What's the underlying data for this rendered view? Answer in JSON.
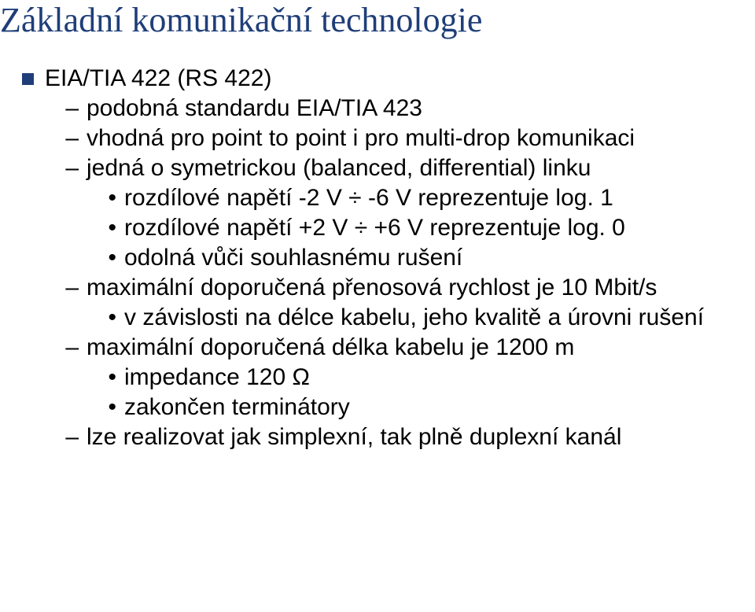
{
  "title": "Základní komunikační technologie",
  "title_color": "#1f3e79",
  "title_fontsize": 44,
  "body_color": "#000000",
  "body_fontsize": 30,
  "line_height": 38,
  "bullet_square_color": "#1f3e79",
  "bullet_square_size": 15,
  "lvl1": {
    "text": "EIA/TIA 422 (RS 422)",
    "indent": 28
  },
  "lvl2": [
    {
      "text": "podobná standardu EIA/TIA 423"
    },
    {
      "text": "vhodná pro point to point i pro multi-drop komunikaci"
    },
    {
      "text": "jedná o symetrickou (balanced, differential) linku"
    },
    {
      "text": "maximální doporučená přenosová rychlost je 10 Mbit/s"
    },
    {
      "text": "maximální doporučená délka kabelu je 1200 m"
    },
    {
      "text": "lze realizovat jak simplexní, tak plně duplexní kanál"
    }
  ],
  "lvl2_indent": 78,
  "lvl3_groupA": [
    {
      "text": "rozdílové napětí -2 V ÷ -6 V reprezentuje log. 1"
    },
    {
      "text": "rozdílové napětí +2 V ÷ +6 V reprezentuje log. 0"
    },
    {
      "text": "odolná vůči souhlasnému rušení"
    }
  ],
  "lvl3_groupB": [
    {
      "text": "v závislosti na délce kabelu, jeho kvalitě a úrovni rušení"
    }
  ],
  "lvl3_groupC": [
    {
      "text": "impedance 120 Ω"
    },
    {
      "text": "zakončen terminátory"
    }
  ],
  "lvl3_indent": 128,
  "dash_col_width": 22,
  "dot_col_width": 20
}
